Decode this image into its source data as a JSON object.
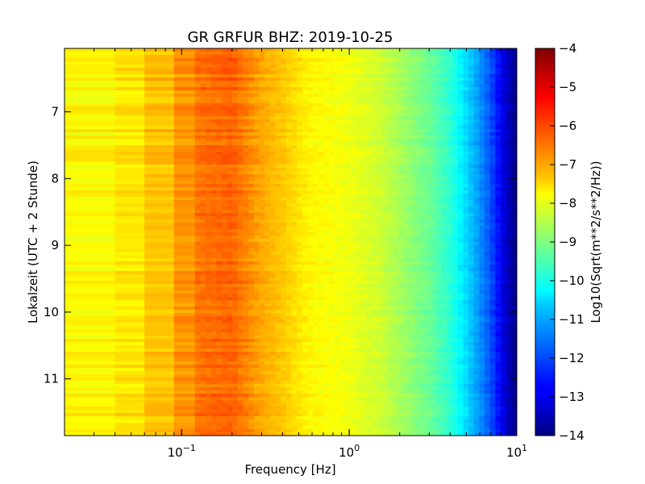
{
  "chart_data": {
    "type": "heatmap",
    "title": "GR GRFUR BHZ: 2019-10-25",
    "xlabel": "Frequency [Hz]",
    "ylabel": "Lokalzeit (UTC + 2 Stunde)",
    "xscale": "log",
    "xlim": [
      0.02,
      10
    ],
    "ylim": [
      6.05,
      11.85
    ],
    "x_ticks": [
      {
        "value": 0.1,
        "base": "10",
        "exp": "−1"
      },
      {
        "value": 1,
        "base": "10",
        "exp": "0"
      },
      {
        "value": 10,
        "base": "10",
        "exp": "1"
      }
    ],
    "y_ticks": [
      {
        "value": 7,
        "label": "7"
      },
      {
        "value": 8,
        "label": "8"
      },
      {
        "value": 9,
        "label": "9"
      },
      {
        "value": 10,
        "label": "10"
      },
      {
        "value": 11,
        "label": "11"
      }
    ],
    "colorbar": {
      "label": "Log10(Sqrt(m**2/s**2/Hz))",
      "range": [
        -14,
        -4
      ],
      "colormap": "jet",
      "ticks": [
        {
          "value": -4,
          "label": "−4"
        },
        {
          "value": -5,
          "label": "−5"
        },
        {
          "value": -6,
          "label": "−6"
        },
        {
          "value": -7,
          "label": "−7"
        },
        {
          "value": -8,
          "label": "−8"
        },
        {
          "value": -9,
          "label": "−9"
        },
        {
          "value": -10,
          "label": "−10"
        },
        {
          "value": -11,
          "label": "−11"
        },
        {
          "value": -12,
          "label": "−12"
        },
        {
          "value": -13,
          "label": "−13"
        },
        {
          "value": -14,
          "label": "−14"
        }
      ]
    },
    "spectrum_profile": {
      "frequency_hz": [
        0.02,
        0.04,
        0.06,
        0.09,
        0.12,
        0.15,
        0.2,
        0.25,
        0.3,
        0.4,
        0.5,
        0.6,
        0.8,
        1.0,
        1.5,
        2.0,
        3.0,
        4.0,
        5.0,
        6.0,
        7.0,
        8.0,
        9.0,
        10.0
      ],
      "log10_amplitude": [
        -7.7,
        -7.7,
        -7.3,
        -7.0,
        -6.4,
        -6.3,
        -6.2,
        -6.6,
        -6.9,
        -7.2,
        -7.5,
        -7.7,
        -7.8,
        -7.9,
        -8.2,
        -8.6,
        -9.2,
        -9.8,
        -10.6,
        -11.3,
        -12.0,
        -12.8,
        -13.5,
        -13.9
      ]
    }
  }
}
